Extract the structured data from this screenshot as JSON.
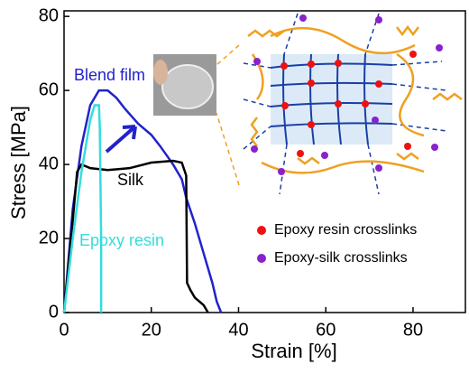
{
  "chart_data": {
    "type": "line",
    "x_label": "Strain [%]",
    "y_label": "Stress [MPa]",
    "xlim": [
      0,
      92
    ],
    "ylim": [
      0,
      81.5
    ],
    "xticks": [
      0,
      20,
      40,
      60,
      80
    ],
    "yticks": [
      0,
      20,
      40,
      60,
      80
    ],
    "series": [
      {
        "name": "Blend film",
        "color": "#2222cc",
        "x": [
          0,
          2,
          4,
          6,
          8,
          10,
          12,
          14,
          17,
          20,
          22,
          25,
          27,
          28,
          30,
          32,
          34,
          35,
          36
        ],
        "values": [
          0,
          28,
          45,
          56,
          60,
          60,
          58,
          55,
          51,
          48,
          45,
          40,
          36,
          31,
          24,
          16,
          8,
          3,
          0
        ]
      },
      {
        "name": "Silk",
        "color": "#000000",
        "x": [
          0,
          2,
          3,
          4,
          6,
          10,
          15,
          20,
          25,
          27,
          28,
          28.2,
          29,
          30,
          32,
          33
        ],
        "values": [
          0,
          25,
          38,
          40,
          39,
          38.5,
          39,
          40.5,
          41,
          40.5,
          37,
          8,
          6,
          4,
          2,
          0
        ]
      },
      {
        "name": "Epoxy resin",
        "color": "#33dddd",
        "x": [
          0,
          2,
          4,
          6,
          7,
          8,
          8.2,
          8.5,
          8.5
        ],
        "values": [
          0,
          20,
          38,
          52,
          56,
          56,
          50,
          20,
          0
        ]
      }
    ],
    "inset_legend": [
      {
        "label": "Epoxy resin crosslinks",
        "color": "#ee1111"
      },
      {
        "label": "Epoxy-silk crosslinks",
        "color": "#8822cc"
      }
    ]
  }
}
